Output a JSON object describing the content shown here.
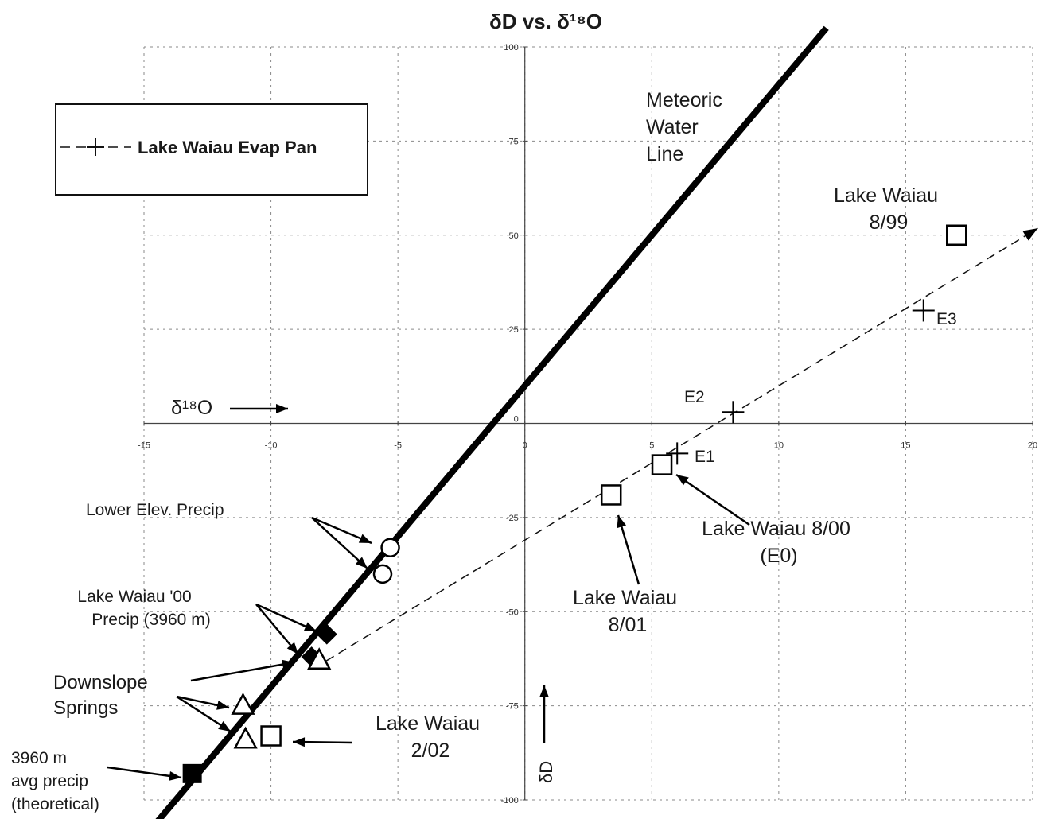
{
  "chart_data": {
    "type": "scatter",
    "title": "δD vs. δ¹⁸O",
    "xlabel": "δ¹⁸O",
    "ylabel": "δD",
    "xlim": [
      -15,
      20
    ],
    "ylim": [
      -100,
      100
    ],
    "xticks": [
      "-15",
      "-10",
      "-5",
      "0",
      "5",
      "10",
      "15",
      "20"
    ],
    "yticks": [
      "-100",
      "-75",
      "-50",
      "-25",
      "0",
      "25",
      "50",
      "75",
      "100"
    ],
    "grid": true,
    "legend": {
      "placement": "top-left",
      "label": "Lake Waiau Evap Pan"
    },
    "meteoric_water_line": {
      "label": [
        "Meteoric",
        "Water",
        "Line"
      ],
      "slope": 8,
      "intercept": 10
    },
    "evaporation_line": {
      "slope": 4.1,
      "intercept": -31
    },
    "series": [
      {
        "name": "Lake Waiau Evap Pan",
        "marker": "plus",
        "points": [
          {
            "x": 6.0,
            "y": -8,
            "label": "E1"
          },
          {
            "x": 8.2,
            "y": 3,
            "label": "E2"
          },
          {
            "x": 15.7,
            "y": 30,
            "label": "E3"
          }
        ]
      },
      {
        "marker": "open-square",
        "points": [
          {
            "x": 17.0,
            "y": 50
          },
          {
            "x": 5.4,
            "y": -11
          },
          {
            "x": 3.4,
            "y": -19
          },
          {
            "x": -10.0,
            "y": -83
          }
        ]
      },
      {
        "marker": "open-circle",
        "points": [
          {
            "x": -5.3,
            "y": -33
          },
          {
            "x": -5.6,
            "y": -40
          }
        ]
      },
      {
        "marker": "filled-diamond",
        "points": [
          {
            "x": -7.8,
            "y": -56
          },
          {
            "x": -8.4,
            "y": -62
          }
        ]
      },
      {
        "marker": "open-triangle",
        "points": [
          {
            "x": -8.1,
            "y": -63
          },
          {
            "x": -11.1,
            "y": -75
          },
          {
            "x": -11.0,
            "y": -84
          }
        ]
      },
      {
        "marker": "filled-square",
        "points": [
          {
            "x": -13.1,
            "y": -93
          }
        ]
      }
    ],
    "annotations": {
      "lake_waiau_899": [
        "Lake Waiau",
        "8/99"
      ],
      "e2": "E2",
      "e1": "E1",
      "e3": "E3",
      "lake_waiau_800": [
        "Lake Waiau 8/00",
        "(E0)"
      ],
      "lake_waiau_801": [
        "Lake Waiau",
        "8/01"
      ],
      "lake_waiau_202": [
        "Lake Waiau",
        "2/02"
      ],
      "lower_elev_precip": "Lower Elev. Precip",
      "lake_waiau_00_precip": [
        "Lake Waiau '00",
        "Precip (3960 m)"
      ],
      "downslope_springs": [
        "Downslope",
        "Springs"
      ],
      "avg_precip": [
        "3960 m",
        "avg precip",
        "(theoretical)"
      ],
      "x_arrow_label": "δ¹⁸O",
      "y_arrow_label": "δD"
    }
  }
}
